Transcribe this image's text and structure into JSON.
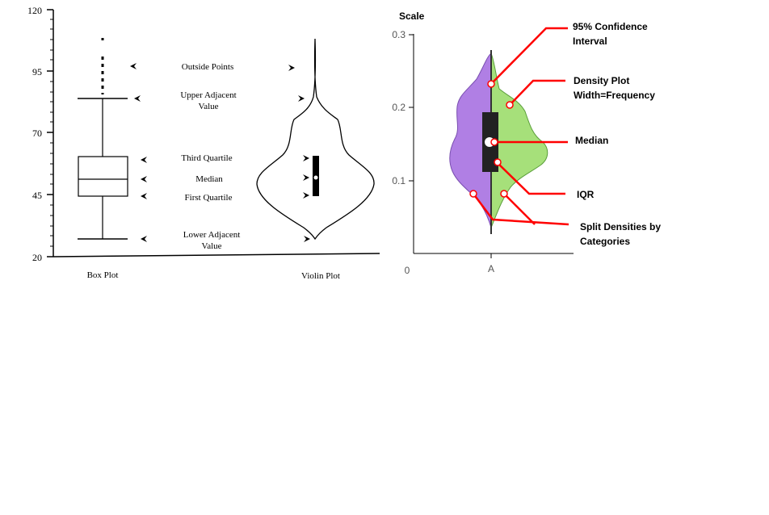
{
  "left_panel": {
    "y_ticks": [
      "120",
      "95",
      "70",
      "45",
      "20"
    ],
    "x_labels": {
      "box": "Box Plot",
      "violin": "Violin Plot"
    },
    "annotations": {
      "outside_points": "Outside Points",
      "upper_adjacent_1": "Upper Adjacent",
      "upper_adjacent_2": "Value",
      "third_quartile": "Third Quartile",
      "median": "Median",
      "first_quartile": "First Quartile",
      "lower_adjacent_1": "Lower Adjacent",
      "lower_adjacent_2": "Value"
    }
  },
  "right_panel": {
    "scale_label": "Scale",
    "y_ticks": [
      "0.3",
      "0.2",
      "0.1"
    ],
    "x_ticks": [
      "0",
      "A"
    ],
    "colors": {
      "left_half": "#b07fe4",
      "right_half": "#a6e07a",
      "callout": "#ff0000"
    },
    "callouts": {
      "ci_1": "95% Confidence",
      "ci_2": "Interval",
      "density_1": "Density Plot",
      "density_2": "Width=Frequency",
      "median": "Median",
      "iqr": "IQR",
      "split_1": "Split Densities by",
      "split_2": "Categories"
    }
  }
}
